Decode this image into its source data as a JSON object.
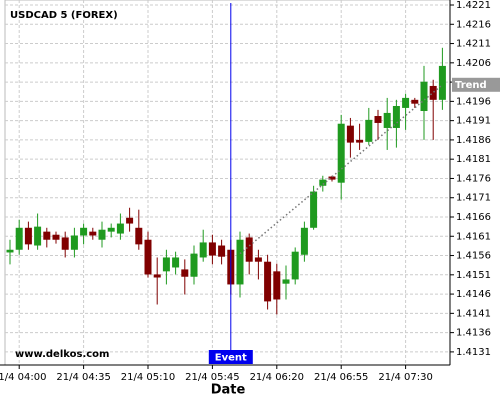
{
  "chart_data": {
    "type": "candlestick",
    "title": "USDCAD 5 (FOREX)",
    "watermark": "www.delkos.com",
    "x_label": "Date",
    "categories": [
      null,
      "21/4 04:00",
      null,
      null,
      null,
      null,
      null,
      null,
      "21/4 04:35",
      null,
      null,
      null,
      null,
      null,
      null,
      "21/4 05:10",
      null,
      null,
      null,
      null,
      null,
      null,
      "21/4 05:45",
      null,
      null,
      null,
      null,
      null,
      null,
      "21/4 06:20",
      null,
      null,
      null,
      null,
      null,
      null,
      "21/4 06:55",
      null,
      null,
      null,
      null,
      null,
      null,
      "21/4 07:30",
      null,
      null,
      null,
      null
    ],
    "open": [
      1.41568,
      1.41575,
      1.41632,
      1.41586,
      1.41622,
      1.41614,
      1.41607,
      1.41575,
      1.41612,
      1.41622,
      1.41601,
      1.41622,
      1.41617,
      1.41658,
      1.41632,
      1.41601,
      1.41511,
      1.41519,
      1.41529,
      1.41524,
      1.41505,
      1.41555,
      1.41594,
      1.41586,
      1.41575,
      1.41485,
      1.41607,
      1.41555,
      1.41544,
      1.41519,
      1.41487,
      1.41498,
      1.41562,
      1.41632,
      1.41741,
      1.41765,
      1.41749,
      1.41897,
      1.4186,
      1.41855,
      1.41922,
      1.41891,
      1.41891,
      1.41943,
      1.41964,
      1.41935,
      1.42,
      1.41964
    ],
    "high": [
      1.41601,
      1.41653,
      1.41648,
      1.41669,
      1.41632,
      1.41622,
      1.41622,
      1.41632,
      1.41643,
      1.41632,
      1.41648,
      1.41643,
      1.41669,
      1.41684,
      1.41679,
      1.41622,
      1.41555,
      1.41575,
      1.4157,
      1.4155,
      1.41586,
      1.41627,
      1.41614,
      1.41601,
      1.41601,
      1.41622,
      1.41617,
      1.41575,
      1.41562,
      1.41539,
      1.41534,
      1.41581,
      1.41648,
      1.41741,
      1.41767,
      1.41767,
      1.41925,
      1.41917,
      1.41902,
      1.41943,
      1.41938,
      1.41969,
      1.41964,
      1.4198,
      1.41969,
      1.42052,
      1.42016,
      1.42099
    ],
    "low": [
      1.41537,
      1.41562,
      1.41575,
      1.41575,
      1.41581,
      1.41591,
      1.41555,
      1.41555,
      1.41589,
      1.41601,
      1.41581,
      1.41607,
      1.41601,
      1.41622,
      1.41575,
      1.41503,
      1.41433,
      1.41485,
      1.41511,
      1.41459,
      1.41485,
      1.41544,
      1.41537,
      1.41537,
      1.41459,
      1.41451,
      1.41511,
      1.41498,
      1.4142,
      1.41407,
      1.41446,
      1.41485,
      1.41544,
      1.41627,
      1.41726,
      1.41752,
      1.41705,
      1.41814,
      1.41834,
      1.41847,
      1.4186,
      1.41834,
      1.4184,
      1.41886,
      1.41943,
      1.4186,
      1.4186,
      1.41938
    ],
    "close": [
      1.41575,
      1.41632,
      1.41589,
      1.41635,
      1.41601,
      1.41601,
      1.41575,
      1.41612,
      1.41632,
      1.41612,
      1.41627,
      1.41632,
      1.41643,
      1.41643,
      1.41589,
      1.41511,
      1.41503,
      1.41555,
      1.41555,
      1.41505,
      1.41565,
      1.41594,
      1.4156,
      1.41557,
      1.41485,
      1.41601,
      1.41544,
      1.41544,
      1.41441,
      1.41446,
      1.41498,
      1.4157,
      1.41632,
      1.41726,
      1.41757,
      1.41757,
      1.41902,
      1.41853,
      1.41853,
      1.41912,
      1.41904,
      1.4193,
      1.41948,
      1.41969,
      1.41954,
      1.42011,
      1.41964,
      1.42052
    ],
    "up_color": "#1f9a1f",
    "down_color": "#800000",
    "ylim": [
      1.41276,
      1.42223
    ],
    "yticks": [
      1.4131,
      1.4136,
      1.4141,
      1.4146,
      1.4151,
      1.4156,
      1.4161,
      1.4166,
      1.4171,
      1.4176,
      1.4181,
      1.4186,
      1.4191,
      1.4196,
      1.4201,
      1.4206,
      1.4211,
      1.4216,
      1.4221
    ],
    "grid": true,
    "event": {
      "label": "Event",
      "category": 24,
      "color": "#0000ee"
    },
    "trend": {
      "label": "Trend",
      "start": [
        25,
        1.41565
      ],
      "end": [
        47,
        1.42003
      ]
    }
  }
}
